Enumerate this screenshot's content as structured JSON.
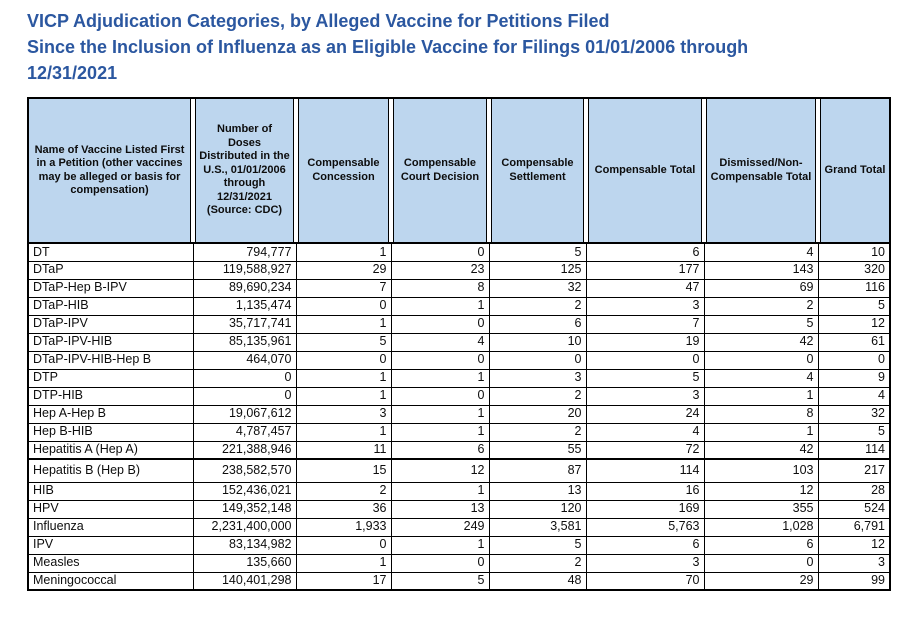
{
  "title": {
    "line1": "VICP Adjudication Categories, by Alleged Vaccine for Petitions Filed",
    "line2": "Since the Inclusion of Influenza as an Eligible Vaccine for Filings 01/01/2006 through",
    "line3": "12/31/2021"
  },
  "colors": {
    "title_blue": "#2B57A0",
    "header_fill": "#BDD6EE",
    "border": "#000000"
  },
  "table": {
    "headers": [
      "Name of Vaccine Listed First in a Petition (other vaccines may be alleged or basis for compensation)",
      "Number of Doses Distributed in the U.S., 01/01/2006 through 12/31/2021 (Source: CDC)",
      "Compensable Concession",
      "Compensable Court Decision",
      "Compensable Settlement",
      "Compensable Total",
      "Dismissed/Non-Compensable Total",
      "Grand Total"
    ],
    "rows": [
      [
        "DT",
        "794,777",
        "1",
        "0",
        "5",
        "6",
        "4",
        "10"
      ],
      [
        "DTaP",
        "119,588,927",
        "29",
        "23",
        "125",
        "177",
        "143",
        "320"
      ],
      [
        "DTaP-Hep B-IPV",
        "89,690,234",
        "7",
        "8",
        "32",
        "47",
        "69",
        "116"
      ],
      [
        "DTaP-HIB",
        "1,135,474",
        "0",
        "1",
        "2",
        "3",
        "2",
        "5"
      ],
      [
        "DTaP-IPV",
        "35,717,741",
        "1",
        "0",
        "6",
        "7",
        "5",
        "12"
      ],
      [
        "DTaP-IPV-HIB",
        "85,135,961",
        "5",
        "4",
        "10",
        "19",
        "42",
        "61"
      ],
      [
        "DTaP-IPV-HIB-Hep B",
        "464,070",
        "0",
        "0",
        "0",
        "0",
        "0",
        "0"
      ],
      [
        "DTP",
        "0",
        "1",
        "1",
        "3",
        "5",
        "4",
        "9"
      ],
      [
        "DTP-HIB",
        "0",
        "1",
        "0",
        "2",
        "3",
        "1",
        "4"
      ],
      [
        "Hep A-Hep B",
        "19,067,612",
        "3",
        "1",
        "20",
        "24",
        "8",
        "32"
      ],
      [
        "Hep B-HIB",
        "4,787,457",
        "1",
        "1",
        "2",
        "4",
        "1",
        "5"
      ],
      [
        "Hepatitis A (Hep A)",
        "221,388,946",
        "11",
        "6",
        "55",
        "72",
        "42",
        "114"
      ],
      [
        "Hepatitis B (Hep B)",
        "238,582,570",
        "15",
        "12",
        "87",
        "114",
        "103",
        "217"
      ],
      [
        "HIB",
        "152,436,021",
        "2",
        "1",
        "13",
        "16",
        "12",
        "28"
      ],
      [
        "HPV",
        "149,352,148",
        "36",
        "13",
        "120",
        "169",
        "355",
        "524"
      ],
      [
        "Influenza",
        "2,231,400,000",
        "1,933",
        "249",
        "3,581",
        "5,763",
        "1,028",
        "6,791"
      ],
      [
        "IPV",
        "83,134,982",
        "0",
        "1",
        "5",
        "6",
        "6",
        "12"
      ],
      [
        "Measles",
        "135,660",
        "1",
        "0",
        "2",
        "3",
        "0",
        "3"
      ],
      [
        "Meningococcal",
        "140,401,298",
        "17",
        "5",
        "48",
        "70",
        "29",
        "99"
      ]
    ]
  }
}
